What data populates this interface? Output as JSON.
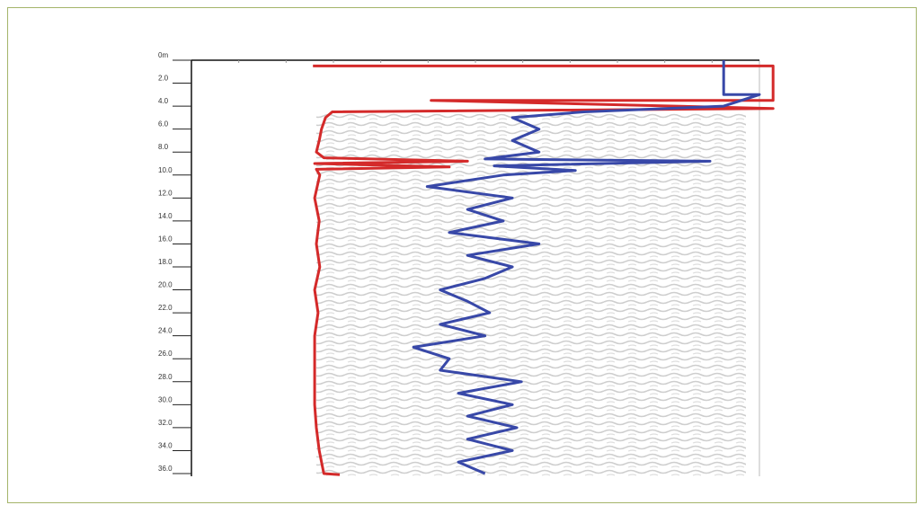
{
  "chart_data": {
    "type": "line",
    "ylim": [
      0,
      36
    ],
    "yticks": [
      {
        "value": 0,
        "label": "0m"
      },
      {
        "value": 2,
        "label": "2.0"
      },
      {
        "value": 4,
        "label": "4.0"
      },
      {
        "value": 6,
        "label": "6.0"
      },
      {
        "value": 8,
        "label": "8.0"
      },
      {
        "value": 10,
        "label": "10.0"
      },
      {
        "value": 12,
        "label": "12.0"
      },
      {
        "value": 14,
        "label": "14.0"
      },
      {
        "value": 16,
        "label": "16.0"
      },
      {
        "value": 18,
        "label": "18.0"
      },
      {
        "value": 20,
        "label": "20.0"
      },
      {
        "value": 22,
        "label": "22.0"
      },
      {
        "value": 24,
        "label": "24.0"
      },
      {
        "value": 26,
        "label": "26.0"
      },
      {
        "value": 28,
        "label": "28.0"
      },
      {
        "value": 30,
        "label": "30.0"
      },
      {
        "value": 32,
        "label": "32.0"
      },
      {
        "value": 34,
        "label": "34.0"
      },
      {
        "value": 36,
        "label": "36.0"
      }
    ],
    "xlim": [
      0,
      100
    ],
    "series": [
      {
        "color": "#d42a2a",
        "x": [
          21.4,
          102.4,
          102.4,
          42.2,
          102.4,
          24.8,
          23.6,
          22.9,
          22.5,
          22.0,
          23.3,
          48.6,
          21.7,
          45.4,
          22.0,
          22.6,
          21.7,
          22.5,
          22.0,
          22.6,
          21.7,
          22.3,
          21.7,
          21.7,
          21.7,
          21.7,
          22.0,
          22.5,
          23.3,
          26.1
        ],
        "y": [
          0.5,
          0.5,
          3.5,
          3.5,
          4.2,
          4.5,
          5,
          6,
          7,
          8,
          8.5,
          8.8,
          9.0,
          9.3,
          9.5,
          10,
          12,
          14,
          16,
          18,
          20,
          22,
          24,
          26,
          28,
          30,
          32,
          34,
          36,
          36.1
        ]
      },
      {
        "color": "#3848a8",
        "x": [
          93.7,
          93.7,
          100,
          93.7,
          69.1,
          56.5,
          61.2,
          56.5,
          61.2,
          51.7,
          91.3,
          53.3,
          67.6,
          54.9,
          41.5,
          56.5,
          48.6,
          54.9,
          45.4,
          61.2,
          48.6,
          56.5,
          51.7,
          43.8,
          48.6,
          52.5,
          43.8,
          51.7,
          39.1,
          45.4,
          43.8,
          58.1,
          47.0,
          56.5,
          48.6,
          57.3,
          48.6,
          56.5,
          47.0,
          51.7
        ],
        "y": [
          0,
          3,
          3,
          4,
          4.5,
          5,
          6,
          7,
          8,
          8.6,
          8.8,
          9.2,
          9.6,
          10,
          11,
          12,
          13,
          14,
          15,
          16,
          17,
          18,
          19,
          20,
          21,
          22,
          23,
          24,
          25,
          26,
          27,
          28,
          29,
          30,
          31,
          32,
          33,
          34,
          35,
          36
        ]
      }
    ]
  }
}
